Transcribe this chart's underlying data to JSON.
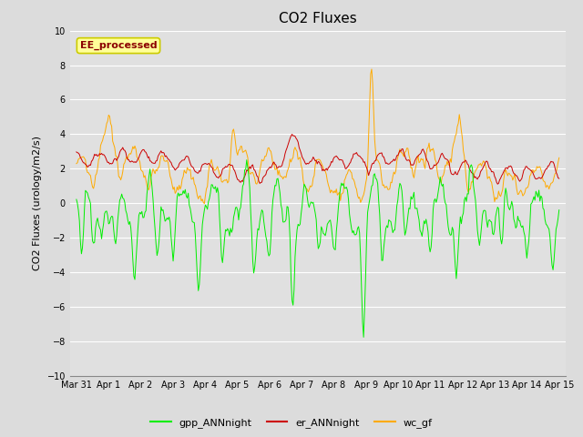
{
  "title": "CO2 Fluxes",
  "ylabel": "CO2 Fluxes (urology/m2/s)",
  "ylim": [
    -10,
    10
  ],
  "yticks": [
    -10,
    -8,
    -6,
    -4,
    -2,
    0,
    2,
    4,
    6,
    8,
    10
  ],
  "xtick_labels": [
    "Mar 31",
    "Apr 1",
    "Apr 2",
    "Apr 3",
    "Apr 4",
    "Apr 5",
    "Apr 6",
    "Apr 7",
    "Apr 8",
    "Apr 9",
    "Apr 10",
    "Apr 11",
    "Apr 12",
    "Apr 13",
    "Apr 14",
    "Apr 15"
  ],
  "fig_bg_color": "#dcdcdc",
  "plot_bg_color": "#e0e0e0",
  "grid_color": "#ffffff",
  "line_colors": {
    "gpp": "#00ee00",
    "er": "#cc0000",
    "wc": "#ffaa00"
  },
  "legend_labels": [
    "gpp_ANNnight",
    "er_ANNnight",
    "wc_gf"
  ],
  "annotation_text": "EE_processed",
  "annotation_color": "#8b0000",
  "annotation_bg": "#ffff99",
  "annotation_edge": "#cccc00",
  "title_fontsize": 11,
  "label_fontsize": 8,
  "tick_fontsize": 7,
  "legend_fontsize": 8,
  "n_points": 480
}
